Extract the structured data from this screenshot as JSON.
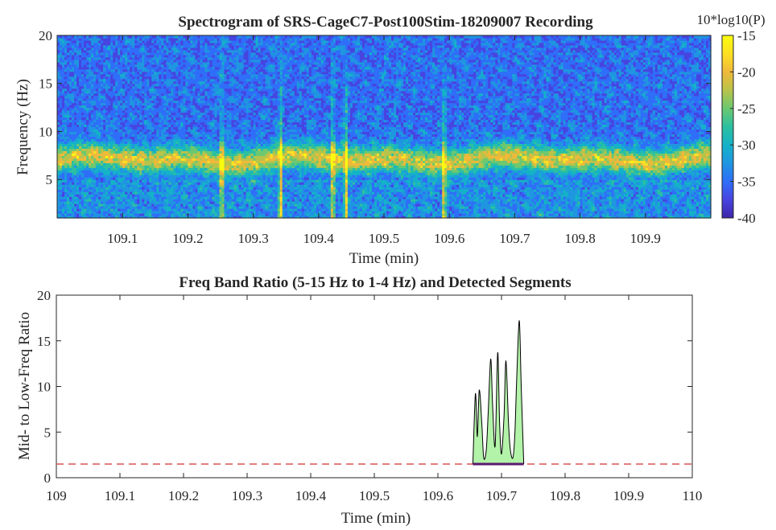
{
  "chart_data": [
    {
      "type": "heatmap",
      "title": "Spectrogram of SRS-CageC7-Post100Stim-18209007 Recording",
      "xlabel": "Time (min)",
      "ylabel": "Frequency (Hz)",
      "xlim": [
        109.0,
        110.0
      ],
      "ylim": [
        1,
        20
      ],
      "x_ticks": [
        109.1,
        109.2,
        109.3,
        109.4,
        109.5,
        109.6,
        109.7,
        109.8,
        109.9
      ],
      "x_tick_labels": [
        "109.1",
        "109.2",
        "109.3",
        "109.4",
        "109.5",
        "109.6",
        "109.7",
        "109.8",
        "109.9"
      ],
      "y_ticks": [
        5,
        10,
        15,
        20
      ],
      "y_tick_labels": [
        "5",
        "10",
        "15",
        "20"
      ],
      "colorbar": {
        "label": "10*log10(P)",
        "range": [
          -40,
          -15
        ],
        "ticks": [
          -15,
          -20,
          -25,
          -30,
          -35,
          -40
        ],
        "tick_labels": [
          "-15",
          "-20",
          "-25",
          "-30",
          "-35",
          "-40"
        ],
        "colormap": "parula"
      },
      "band_center_hz": [
        6.5,
        7.5
      ],
      "bright_columns_min": [
        109.25,
        109.34,
        109.42,
        109.44,
        109.59
      ],
      "colors": [
        "#3e26a8",
        "#4744e0",
        "#2f6ef8",
        "#1f96e0",
        "#15b2c8",
        "#2cc0a0",
        "#6cc870",
        "#b8c34a",
        "#f0b93a",
        "#fde024",
        "#f9fb0e"
      ]
    },
    {
      "type": "area",
      "title": "Freq Band Ratio (5-15 Hz to 1-4 Hz) and Detected Segments",
      "xlabel": "Time (min)",
      "ylabel": "Mid- to Low-Freq Ratio",
      "xlim": [
        109.0,
        110.0
      ],
      "ylim": [
        0,
        20
      ],
      "x_ticks": [
        109.0,
        109.1,
        109.2,
        109.3,
        109.4,
        109.5,
        109.6,
        109.7,
        109.8,
        109.9,
        110.0
      ],
      "x_tick_labels": [
        "109",
        "109.1",
        "109.2",
        "109.3",
        "109.4",
        "109.5",
        "109.6",
        "109.7",
        "109.8",
        "109.9",
        "110"
      ],
      "y_ticks": [
        0,
        5,
        10,
        15,
        20
      ],
      "y_tick_labels": [
        "0",
        "5",
        "10",
        "15",
        "20"
      ],
      "threshold": 1.5,
      "segment": {
        "start": 109.655,
        "end": 109.735
      },
      "x": [
        109.655,
        109.659,
        109.662,
        109.665,
        109.669,
        109.672,
        109.676,
        109.679,
        109.683,
        109.686,
        109.69,
        109.694,
        109.697,
        109.7,
        109.704,
        109.707,
        109.711,
        109.714,
        109.718,
        109.721,
        109.724,
        109.728,
        109.731,
        109.735
      ],
      "y": [
        1.5,
        9.2,
        4.5,
        9.6,
        6.0,
        2.2,
        3.0,
        7.0,
        13.0,
        8.0,
        3.5,
        13.7,
        6.0,
        2.6,
        6.8,
        12.8,
        6.0,
        3.0,
        2.2,
        4.8,
        11.0,
        17.2,
        10.0,
        1.5
      ],
      "colors": {
        "fill": "#b3f3a9",
        "line": "#000000",
        "threshold": "#d95353",
        "segment": "#5a1a6e"
      }
    }
  ]
}
